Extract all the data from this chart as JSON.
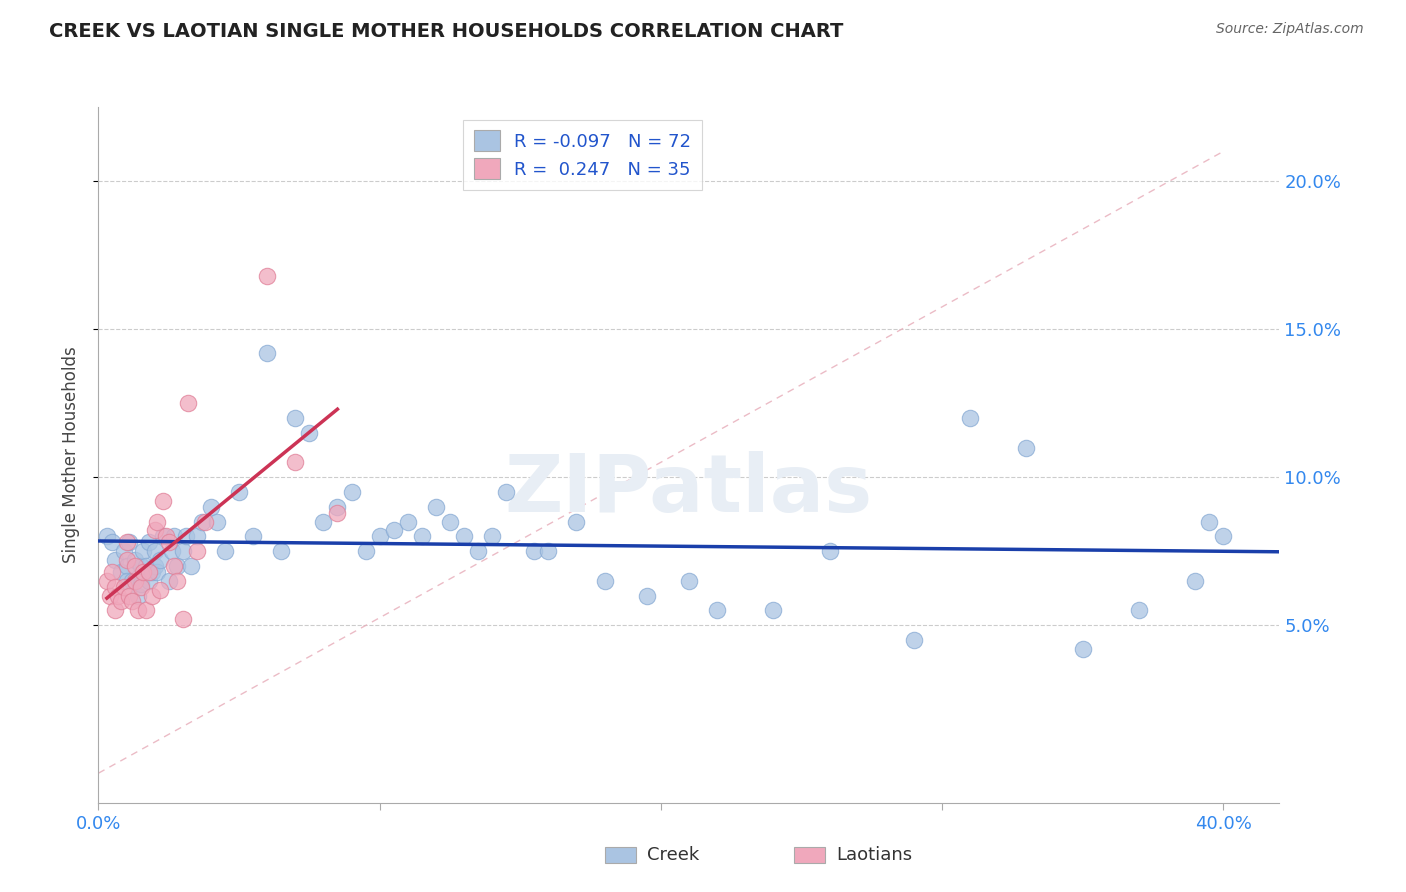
{
  "title": "CREEK VS LAOTIAN SINGLE MOTHER HOUSEHOLDS CORRELATION CHART",
  "source": "Source: ZipAtlas.com",
  "ylabel": "Single Mother Households",
  "xlim": [
    0.0,
    0.42
  ],
  "ylim": [
    -0.01,
    0.225
  ],
  "creek_color": "#aac4e2",
  "creek_edge_color": "#88aad4",
  "laotian_color": "#f0a8bc",
  "laotian_edge_color": "#e08098",
  "creek_line_color": "#1a3faa",
  "laotian_line_color": "#cc3355",
  "diag_line_color": "#e8b0bc",
  "legend_creek_R": "-0.097",
  "legend_creek_N": "72",
  "legend_laotian_R": "0.247",
  "legend_laotian_N": "35",
  "watermark": "ZIPatlas",
  "creek_x": [
    0.003,
    0.005,
    0.006,
    0.008,
    0.009,
    0.01,
    0.01,
    0.011,
    0.012,
    0.013,
    0.014,
    0.015,
    0.015,
    0.016,
    0.017,
    0.018,
    0.018,
    0.019,
    0.02,
    0.02,
    0.021,
    0.022,
    0.023,
    0.025,
    0.026,
    0.027,
    0.028,
    0.03,
    0.031,
    0.033,
    0.035,
    0.037,
    0.04,
    0.042,
    0.045,
    0.05,
    0.055,
    0.06,
    0.065,
    0.07,
    0.075,
    0.08,
    0.085,
    0.09,
    0.095,
    0.1,
    0.105,
    0.11,
    0.115,
    0.12,
    0.125,
    0.13,
    0.135,
    0.14,
    0.145,
    0.155,
    0.16,
    0.17,
    0.18,
    0.195,
    0.21,
    0.22,
    0.24,
    0.26,
    0.29,
    0.31,
    0.33,
    0.35,
    0.37,
    0.39,
    0.395,
    0.4
  ],
  "creek_y": [
    0.08,
    0.078,
    0.072,
    0.068,
    0.075,
    0.07,
    0.065,
    0.078,
    0.065,
    0.072,
    0.06,
    0.07,
    0.064,
    0.075,
    0.07,
    0.065,
    0.078,
    0.068,
    0.07,
    0.075,
    0.068,
    0.072,
    0.08,
    0.065,
    0.075,
    0.08,
    0.07,
    0.075,
    0.08,
    0.07,
    0.08,
    0.085,
    0.09,
    0.085,
    0.075,
    0.095,
    0.08,
    0.142,
    0.075,
    0.12,
    0.115,
    0.085,
    0.09,
    0.095,
    0.075,
    0.08,
    0.082,
    0.085,
    0.08,
    0.09,
    0.085,
    0.08,
    0.075,
    0.08,
    0.095,
    0.075,
    0.075,
    0.085,
    0.065,
    0.06,
    0.065,
    0.055,
    0.055,
    0.075,
    0.045,
    0.12,
    0.11,
    0.042,
    0.055,
    0.065,
    0.085,
    0.08
  ],
  "laotian_x": [
    0.003,
    0.004,
    0.005,
    0.006,
    0.006,
    0.007,
    0.008,
    0.009,
    0.01,
    0.01,
    0.011,
    0.012,
    0.013,
    0.013,
    0.014,
    0.015,
    0.016,
    0.017,
    0.018,
    0.019,
    0.02,
    0.021,
    0.022,
    0.023,
    0.024,
    0.025,
    0.027,
    0.028,
    0.03,
    0.032,
    0.035,
    0.038,
    0.06,
    0.07,
    0.085
  ],
  "laotian_y": [
    0.065,
    0.06,
    0.068,
    0.055,
    0.063,
    0.06,
    0.058,
    0.063,
    0.078,
    0.072,
    0.06,
    0.058,
    0.065,
    0.07,
    0.055,
    0.063,
    0.068,
    0.055,
    0.068,
    0.06,
    0.082,
    0.085,
    0.062,
    0.092,
    0.08,
    0.078,
    0.07,
    0.065,
    0.052,
    0.125,
    0.075,
    0.085,
    0.168,
    0.105,
    0.088
  ]
}
